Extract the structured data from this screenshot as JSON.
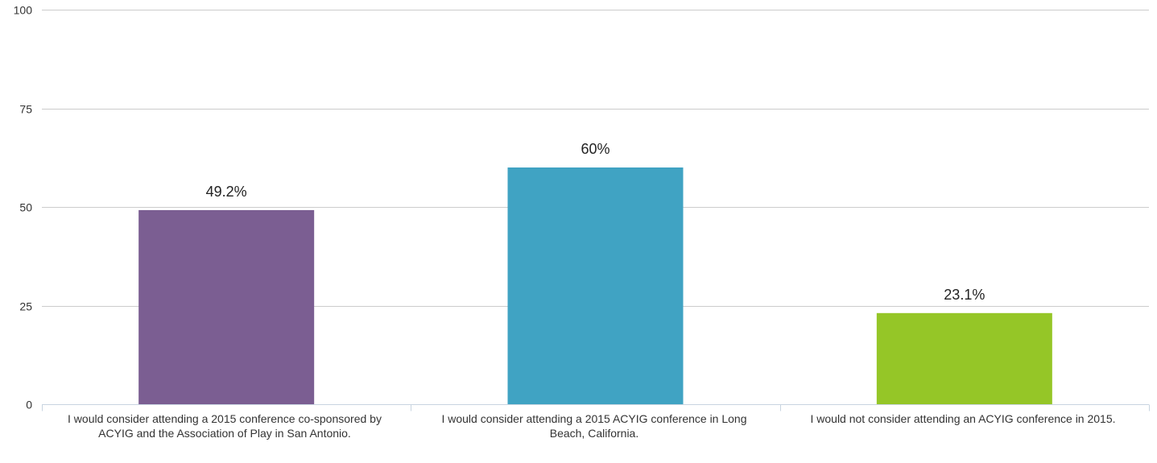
{
  "chart_data": {
    "type": "bar",
    "categories": [
      "I would consider attending a 2015 conference co-sponsored by ACYIG and the Association of Play in San Antonio.",
      "I would consider attending a 2015 ACYIG conference in Long Beach, California.",
      "I would not consider attending an ACYIG conference in 2015."
    ],
    "values": [
      49.2,
      60,
      23.1
    ],
    "value_labels": [
      "49.2%",
      "60%",
      "23.1%"
    ],
    "colors": [
      "#7b5e92",
      "#40a3c3",
      "#95c627"
    ],
    "yticks": [
      "0",
      "25",
      "50",
      "75",
      "100"
    ],
    "ylim": [
      0,
      100
    ],
    "grid": true,
    "legend": "none"
  }
}
